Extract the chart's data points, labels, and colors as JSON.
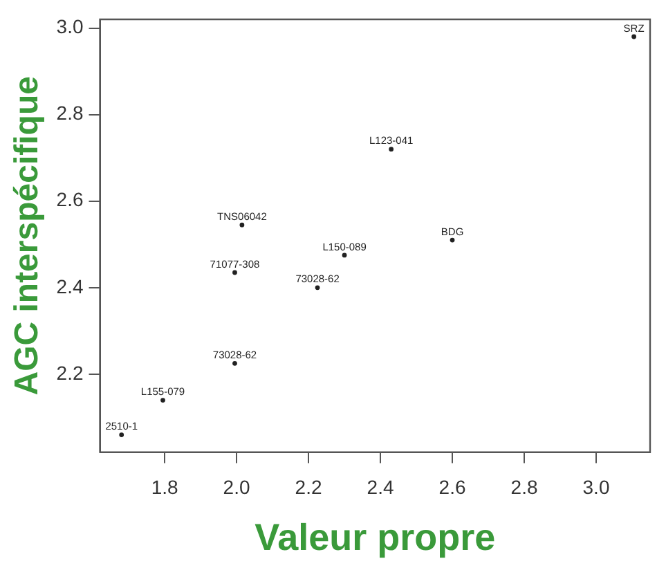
{
  "chart_data": {
    "type": "scatter",
    "xlabel": "Valeur propre",
    "ylabel": "AGC interspécifique",
    "xlim": [
      1.62,
      3.15
    ],
    "ylim": [
      2.02,
      3.02
    ],
    "xticks": [
      1.8,
      {
        "value": 2,
        "label": "2.0"
      },
      2.2,
      2.4,
      2.6,
      2.8,
      {
        "value": 3,
        "label": "3.0"
      }
    ],
    "yticks": [
      2.2,
      2.4,
      2.6,
      2.8,
      {
        "value": 3,
        "label": "3.0"
      }
    ],
    "grid": false,
    "legend": false,
    "series": [
      {
        "color": "#222222",
        "x": [
          3.105,
          2.43,
          2.015,
          2.6,
          2.3,
          1.995,
          2.225,
          1.995,
          1.795,
          1.68
        ],
        "values": [
          2.98,
          2.72,
          2.545,
          2.51,
          2.475,
          2.435,
          2.4,
          2.225,
          2.14,
          2.06
        ],
        "value_labels": [
          "SRZ",
          "L123-041",
          "TNS06042",
          "BDG",
          "L150-089",
          "71077-308",
          "73028-62",
          "73028-62",
          "L155-079",
          "2510-1"
        ]
      }
    ]
  }
}
